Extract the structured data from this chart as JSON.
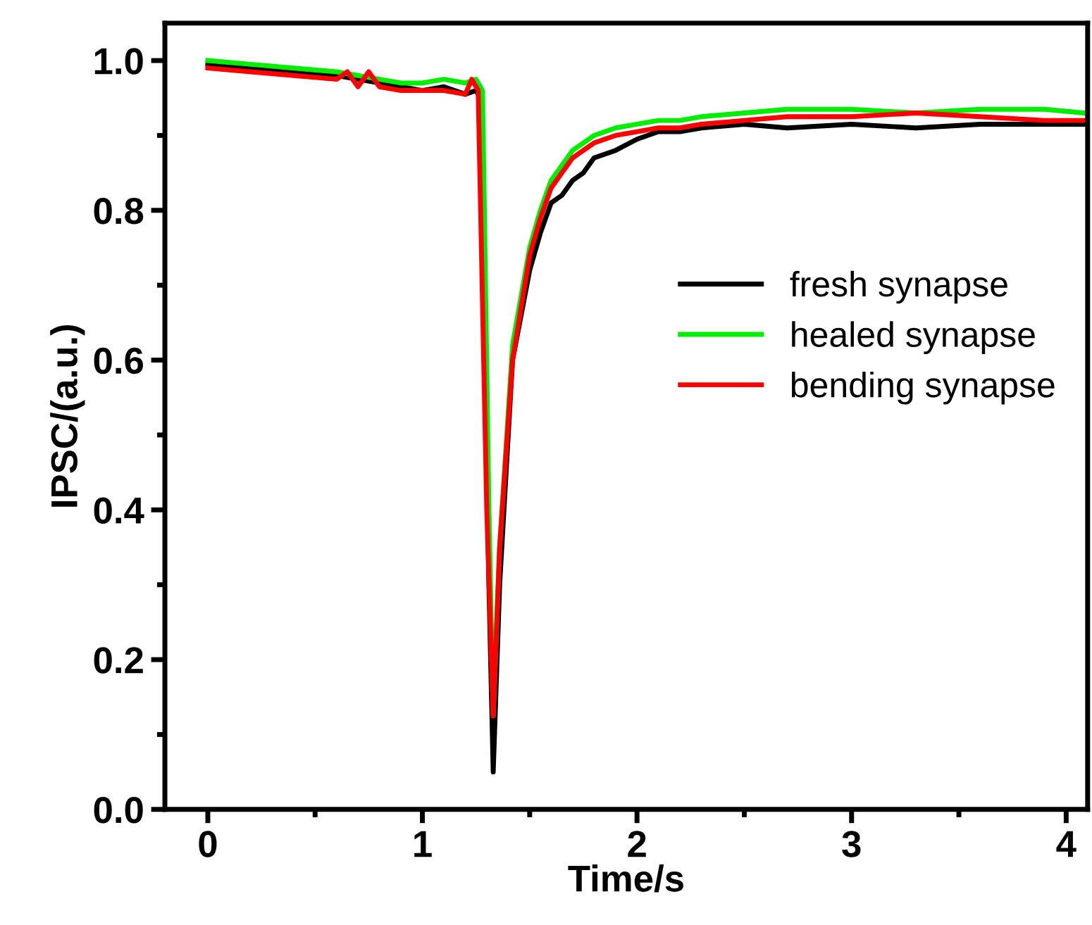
{
  "chart_data": {
    "type": "line",
    "xlabel": "Time/s",
    "ylabel": "IPSC/(a.u.)",
    "xlim": [
      -0.2,
      4.1
    ],
    "ylim": [
      0,
      1.05
    ],
    "xticks": [
      0,
      1,
      2,
      3,
      4
    ],
    "yticks": [
      {
        "value": 0,
        "label": "0.0"
      },
      {
        "value": 0.2,
        "label": "0.2"
      },
      {
        "value": 0.4,
        "label": "0.4"
      },
      {
        "value": 0.6,
        "label": "0.6"
      },
      {
        "value": 0.8,
        "label": "0.8"
      },
      {
        "value": 1.0,
        "label": "1.0"
      }
    ],
    "legend": "right",
    "grid": false,
    "marker": "none",
    "line_style": "solid",
    "series": [
      {
        "name": "fresh synapse",
        "color": "#000000",
        "x": [
          0,
          0.2,
          0.4,
          0.6,
          0.8,
          0.9,
          1.0,
          1.1,
          1.2,
          1.25,
          1.27,
          1.31,
          1.33,
          1.36,
          1.42,
          1.5,
          1.55,
          1.6,
          1.65,
          1.7,
          1.75,
          1.8,
          1.9,
          2.0,
          2.1,
          2.2,
          2.3,
          2.5,
          2.7,
          3.0,
          3.3,
          3.6,
          3.9,
          4.08
        ],
        "values": [
          0.995,
          0.99,
          0.985,
          0.98,
          0.97,
          0.965,
          0.96,
          0.965,
          0.955,
          0.96,
          0.95,
          0.3,
          0.05,
          0.3,
          0.6,
          0.72,
          0.77,
          0.81,
          0.82,
          0.84,
          0.85,
          0.87,
          0.88,
          0.895,
          0.905,
          0.905,
          0.91,
          0.915,
          0.91,
          0.915,
          0.91,
          0.915,
          0.915,
          0.915
        ]
      },
      {
        "name": "healed synapse",
        "color": "#00ee00",
        "x": [
          0,
          0.2,
          0.4,
          0.6,
          0.8,
          0.9,
          1.0,
          1.1,
          1.2,
          1.25,
          1.28,
          1.31,
          1.33,
          1.36,
          1.42,
          1.5,
          1.55,
          1.6,
          1.65,
          1.7,
          1.75,
          1.8,
          1.9,
          2.0,
          2.1,
          2.2,
          2.3,
          2.5,
          2.7,
          3.0,
          3.3,
          3.6,
          3.9,
          4.08
        ],
        "values": [
          1.0,
          0.995,
          0.99,
          0.985,
          0.975,
          0.97,
          0.97,
          0.975,
          0.97,
          0.975,
          0.96,
          0.4,
          0.125,
          0.35,
          0.62,
          0.75,
          0.8,
          0.84,
          0.86,
          0.88,
          0.89,
          0.9,
          0.91,
          0.915,
          0.92,
          0.92,
          0.925,
          0.93,
          0.935,
          0.935,
          0.93,
          0.935,
          0.935,
          0.93
        ]
      },
      {
        "name": "bending synapse",
        "color": "#ff0000",
        "x": [
          0,
          0.2,
          0.4,
          0.6,
          0.65,
          0.7,
          0.75,
          0.8,
          0.9,
          1.0,
          1.1,
          1.2,
          1.23,
          1.26,
          1.3,
          1.33,
          1.36,
          1.42,
          1.5,
          1.55,
          1.6,
          1.65,
          1.7,
          1.75,
          1.8,
          1.9,
          2.0,
          2.1,
          2.2,
          2.3,
          2.5,
          2.7,
          3.0,
          3.3,
          3.6,
          3.9,
          4.08
        ],
        "values": [
          0.99,
          0.985,
          0.98,
          0.975,
          0.985,
          0.965,
          0.985,
          0.965,
          0.96,
          0.96,
          0.96,
          0.955,
          0.975,
          0.96,
          0.4,
          0.125,
          0.35,
          0.6,
          0.74,
          0.79,
          0.83,
          0.85,
          0.87,
          0.88,
          0.89,
          0.9,
          0.905,
          0.91,
          0.91,
          0.915,
          0.92,
          0.925,
          0.925,
          0.93,
          0.925,
          0.92,
          0.92
        ]
      }
    ]
  }
}
